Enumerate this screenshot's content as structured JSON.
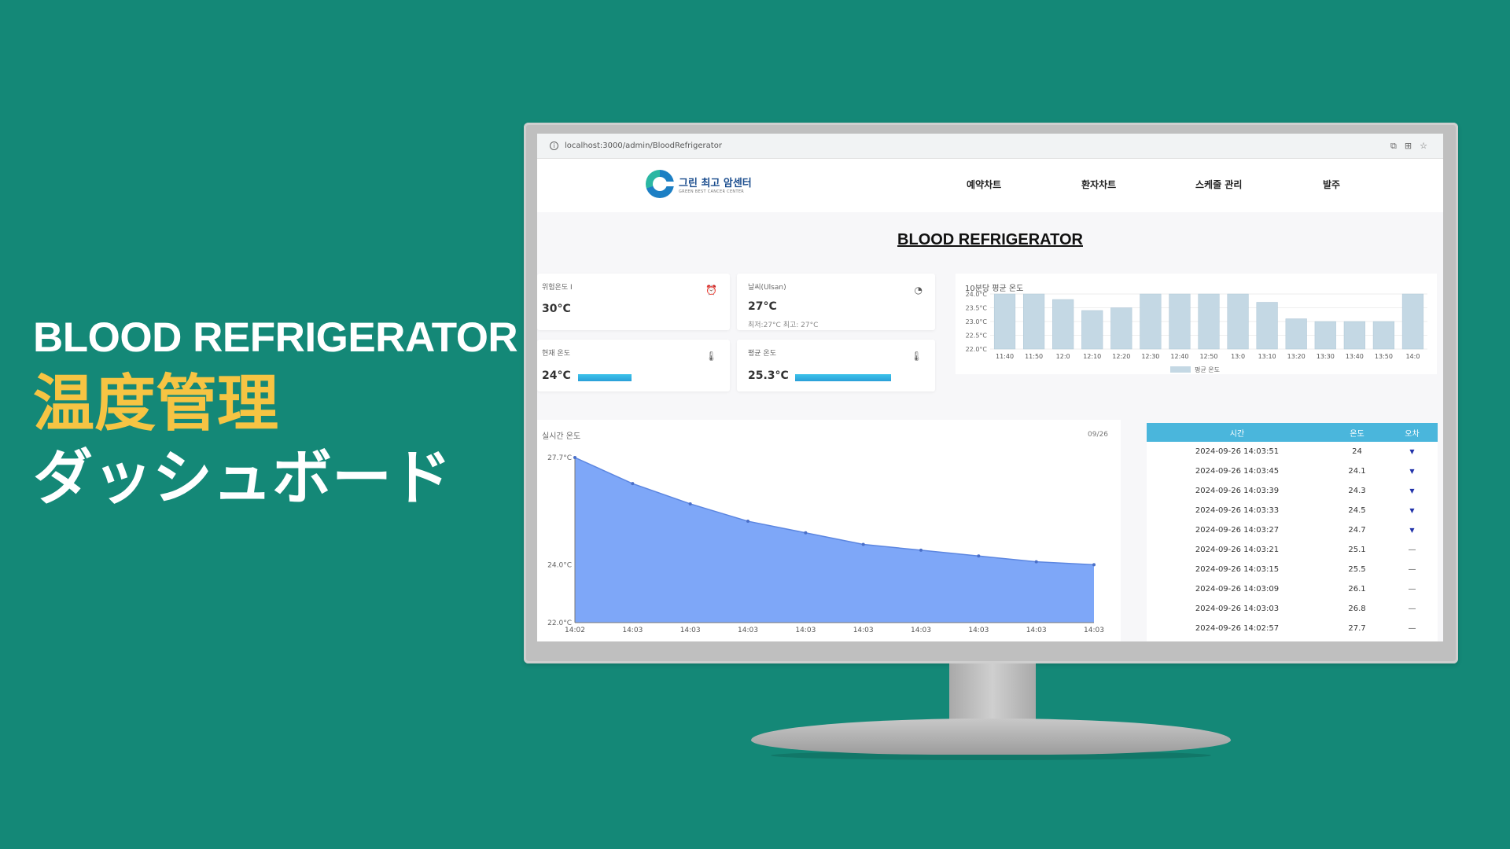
{
  "promo": {
    "title_en": "BLOOD REFRIGERATOR",
    "title_jp": "温度管理",
    "subtitle_jp": "ダッシュボード"
  },
  "browser": {
    "url": "localhost:3000/admin/BloodRefrigerator"
  },
  "header": {
    "logo_ko": "그린 최고 암센터",
    "logo_en": "GREEN BEST CANCER CENTER",
    "nav": [
      "예약차트",
      "환자차트",
      "스케줄 관리",
      "발주"
    ]
  },
  "page_title": "BLOOD REFRIGERATOR",
  "cards": {
    "danger": {
      "label": "위험온도 I",
      "value": "30°C",
      "icon": "alarm-icon"
    },
    "weather": {
      "label": "날씨(Ulsan)",
      "value": "27°C",
      "sub": "최저:27°C 최고: 27°C",
      "icon": "weather-icon"
    },
    "current": {
      "label": "현재 온도",
      "value": "24°C",
      "icon": "thermometer-icon",
      "level": 0.35
    },
    "average": {
      "label": "평균 온도",
      "value": "25.3°C",
      "icon": "thermometer-icon",
      "level": 0.6
    }
  },
  "bar_chart": {
    "title": "10분당 평균 온도",
    "legend": "평균 온도"
  },
  "area_chart": {
    "title": "실시간 온도",
    "date": "09/26"
  },
  "table": {
    "headers": [
      "시간",
      "온도",
      "오차"
    ],
    "rows": [
      {
        "time": "2024-09-26 14:03:51",
        "temp": "24",
        "err": "▼"
      },
      {
        "time": "2024-09-26 14:03:45",
        "temp": "24.1",
        "err": "▼"
      },
      {
        "time": "2024-09-26 14:03:39",
        "temp": "24.3",
        "err": "▼"
      },
      {
        "time": "2024-09-26 14:03:33",
        "temp": "24.5",
        "err": "▼"
      },
      {
        "time": "2024-09-26 14:03:27",
        "temp": "24.7",
        "err": "▼"
      },
      {
        "time": "2024-09-26 14:03:21",
        "temp": "25.1",
        "err": "—"
      },
      {
        "time": "2024-09-26 14:03:15",
        "temp": "25.5",
        "err": "—"
      },
      {
        "time": "2024-09-26 14:03:09",
        "temp": "26.1",
        "err": "—"
      },
      {
        "time": "2024-09-26 14:03:03",
        "temp": "26.8",
        "err": "—"
      },
      {
        "time": "2024-09-26 14:02:57",
        "temp": "27.7",
        "err": "—"
      }
    ]
  },
  "chart_data": [
    {
      "type": "bar",
      "title": "10분당 평균 온도",
      "categories": [
        "11:40",
        "11:50",
        "12:0",
        "12:10",
        "12:20",
        "12:30",
        "12:40",
        "12:50",
        "13:0",
        "13:10",
        "13:20",
        "13:30",
        "13:40",
        "13:50",
        "14:0"
      ],
      "y_ticks": [
        "24.0°C",
        "23.5°C",
        "23.0°C",
        "22.5°C",
        "22.0°C"
      ],
      "values": [
        24.0,
        24.0,
        23.8,
        23.4,
        23.5,
        24.0,
        24.0,
        24.0,
        24.0,
        23.7,
        23.1,
        23.0,
        23.0,
        23.0,
        24.0
      ],
      "ylim": [
        22.0,
        24.0
      ],
      "series": [
        {
          "name": "평균 온도",
          "values": [
            24.0,
            24.0,
            23.8,
            23.4,
            23.5,
            24.0,
            24.0,
            24.0,
            24.0,
            23.7,
            23.1,
            23.0,
            23.0,
            23.0,
            24.0
          ]
        }
      ],
      "color": "#c4d8e4",
      "legend": "bottom"
    },
    {
      "type": "area",
      "title": "실시간 온도",
      "x": [
        "14:02",
        "14:03",
        "14:03",
        "14:03",
        "14:03",
        "14:03",
        "14:03",
        "14:03",
        "14:03",
        "14:03"
      ],
      "values": [
        27.7,
        26.8,
        26.1,
        25.5,
        25.1,
        24.7,
        24.5,
        24.3,
        24.1,
        24.0
      ],
      "y_ticks": [
        "27.7°C",
        "24.0°C",
        "22.0°C"
      ],
      "ylim": [
        22.0,
        27.7
      ],
      "color": "#7ea7f8"
    }
  ]
}
